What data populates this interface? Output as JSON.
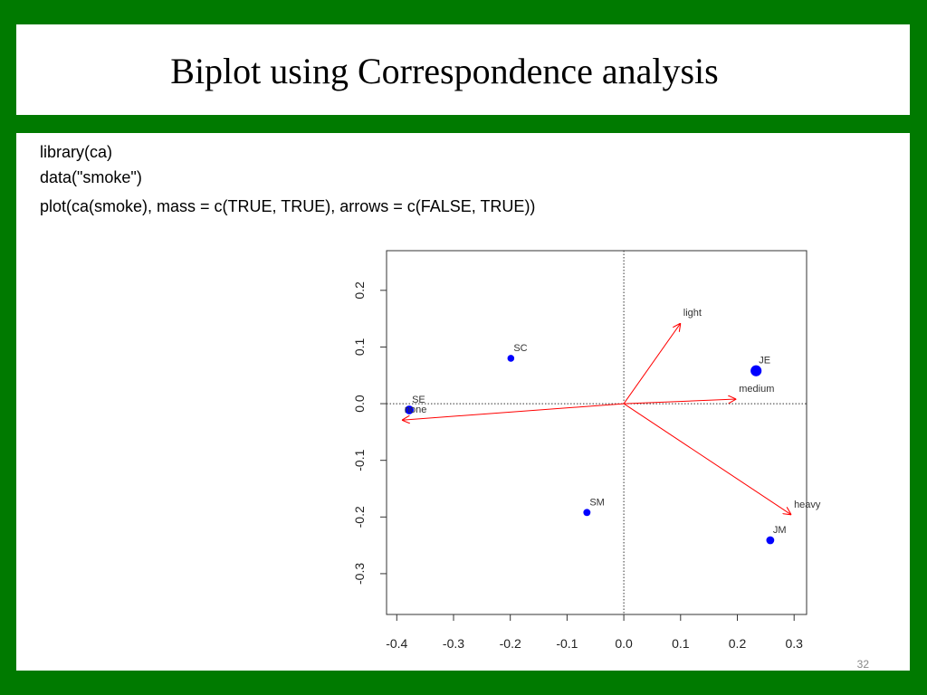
{
  "slide": {
    "title": "Biplot using Correspondence analysis",
    "code": [
      "library(ca)",
      "data(\"smoke\")",
      "plot(ca(smoke), mass = c(TRUE, TRUE), arrows = c(FALSE, TRUE))"
    ],
    "page_number": "32"
  },
  "chart_data": {
    "type": "biplot",
    "xlim": [
      -0.418,
      0.322
    ],
    "ylim": [
      -0.372,
      0.27
    ],
    "xticks": [
      -0.4,
      -0.3,
      -0.2,
      -0.1,
      {
        "value": 0,
        "label": "0.0"
      },
      0.1,
      0.2,
      0.3
    ],
    "yticks": [
      -0.3,
      -0.2,
      -0.1,
      {
        "value": 0,
        "label": "0.0"
      },
      0.1,
      0.2
    ],
    "series": [
      {
        "color": "#0000ff",
        "style": "point",
        "labels": [
          "SE",
          "SC",
          "SM",
          "JE",
          "JM"
        ],
        "x": [
          -0.378,
          -0.199,
          -0.065,
          0.233,
          0.258
        ],
        "values": [
          -0.011,
          0.08,
          -0.192,
          0.058,
          -0.241
        ],
        "sizes": [
          0.13,
          0.05,
          0.06,
          0.26,
          0.09
        ]
      },
      {
        "color": "#ff0000",
        "style": "arrow",
        "labels": [
          "none",
          "light",
          "medium",
          "heavy"
        ],
        "x": [
          -0.391,
          0.1,
          0.198,
          0.295
        ],
        "values": [
          -0.029,
          0.142,
          0.008,
          -0.196
        ]
      }
    ]
  }
}
